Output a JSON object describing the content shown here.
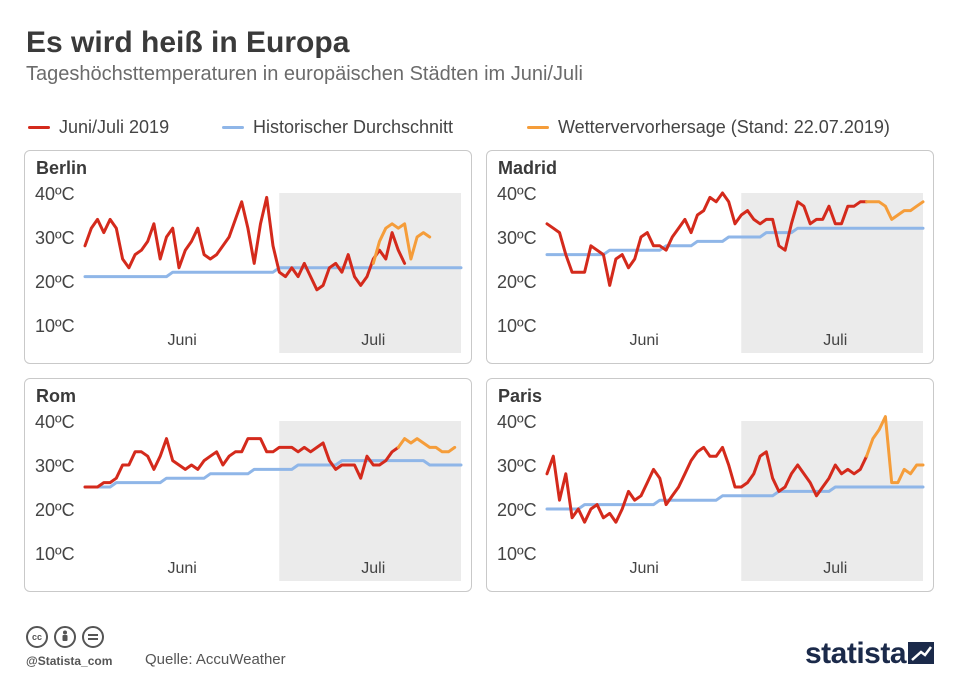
{
  "title": "Es wird heiß in Europa",
  "subtitle": "Tageshöchsttemperaturen in europäischen Städten im Juni/Juli",
  "legend": [
    {
      "label": "Juni/Juli 2019",
      "color": "#d42a1c"
    },
    {
      "label": "Historischer Durchschnitt",
      "color": "#8fb6e8"
    },
    {
      "label": "Wettervervorhersage (Stand: 22.07.2019)",
      "color": "#f59d3a"
    }
  ],
  "colors": {
    "actual": "#d42a1c",
    "average": "#8fb6e8",
    "forecast": "#f59d3a",
    "july_shade": "#ebebeb"
  },
  "footer": {
    "handle": "@Statista_com",
    "source": "Quelle: AccuWeather",
    "brand": "statista",
    "license_icons": [
      "cc",
      "by",
      "nd"
    ]
  },
  "chart_data": [
    {
      "type": "line",
      "title": "Berlin",
      "ylim": [
        10,
        40
      ],
      "yticks": [
        10,
        20,
        30,
        40
      ],
      "ytick_labels": [
        "10ºC",
        "20ºC",
        "30ºC",
        "40ºC"
      ],
      "xlabels": [
        "Juni",
        "Juli"
      ],
      "days": 61,
      "july_start_day": 31,
      "forecast_start_day": 46,
      "series": [
        {
          "name": "Juni/Juli 2019",
          "values": [
            28,
            32,
            34,
            31,
            34,
            32,
            25,
            23,
            26,
            27,
            29,
            33,
            25,
            30,
            32,
            23,
            27,
            29,
            32,
            26,
            25,
            26,
            28,
            30,
            34,
            38,
            32,
            24,
            33,
            39,
            28,
            22,
            21,
            23,
            21,
            24,
            21,
            18,
            19,
            23,
            24,
            22,
            26,
            21,
            19,
            21,
            25,
            27,
            25,
            31,
            27,
            24
          ]
        },
        {
          "name": "Historischer Durchschnitt",
          "values": [
            21,
            21,
            21,
            21,
            21,
            21,
            21,
            21,
            21,
            21,
            21,
            21,
            21,
            21,
            22,
            22,
            22,
            22,
            22,
            22,
            22,
            22,
            22,
            22,
            22,
            22,
            22,
            22,
            22,
            22,
            22,
            23,
            23,
            23,
            23,
            23,
            23,
            23,
            23,
            23,
            23,
            23,
            23,
            23,
            23,
            23,
            23,
            23,
            23,
            23,
            23,
            23,
            23,
            23,
            23,
            23,
            23,
            23,
            23,
            23,
            23
          ]
        },
        {
          "name": "Wettervervorhersage (Stand: 22.07.2019)",
          "values": [
            24,
            29,
            32,
            33,
            32,
            33,
            25,
            30,
            31,
            30
          ]
        }
      ]
    },
    {
      "type": "line",
      "title": "Madrid",
      "ylim": [
        10,
        40
      ],
      "yticks": [
        10,
        20,
        30,
        40
      ],
      "ytick_labels": [
        "10ºC",
        "20ºC",
        "30ºC",
        "40ºC"
      ],
      "xlabels": [
        "Juni",
        "Juli"
      ],
      "days": 61,
      "july_start_day": 31,
      "forecast_start_day": 51,
      "series": [
        {
          "name": "Juni/Juli 2019",
          "values": [
            33,
            32,
            31,
            26,
            22,
            22,
            22,
            28,
            27,
            26,
            19,
            25,
            26,
            23,
            25,
            30,
            31,
            28,
            28,
            27,
            30,
            32,
            34,
            31,
            35,
            36,
            39,
            38,
            40,
            38,
            33,
            35,
            36,
            34,
            33,
            34,
            34,
            28,
            27,
            33,
            38,
            37,
            33,
            34,
            34,
            37,
            33,
            33,
            37,
            37,
            38,
            38
          ]
        },
        {
          "name": "Historischer Durchschnitt",
          "values": [
            26,
            26,
            26,
            26,
            26,
            26,
            26,
            26,
            26,
            26,
            27,
            27,
            27,
            27,
            27,
            27,
            27,
            27,
            27,
            28,
            28,
            28,
            28,
            28,
            29,
            29,
            29,
            29,
            29,
            30,
            30,
            30,
            30,
            30,
            30,
            31,
            31,
            31,
            31,
            31,
            32,
            32,
            32,
            32,
            32,
            32,
            32,
            32,
            32,
            32,
            32,
            32,
            32,
            32,
            32,
            32,
            32,
            32,
            32,
            32,
            32
          ]
        },
        {
          "name": "Wettervervorhersage (Stand: 22.07.2019)",
          "values": [
            38,
            38,
            38,
            37,
            34,
            35,
            36,
            36,
            37,
            38
          ]
        }
      ]
    },
    {
      "type": "line",
      "title": "Rom",
      "ylim": [
        10,
        40
      ],
      "yticks": [
        10,
        20,
        30,
        40
      ],
      "ytick_labels": [
        "10ºC",
        "20ºC",
        "30ºC",
        "40ºC"
      ],
      "xlabels": [
        "Juni",
        "Juli"
      ],
      "days": 61,
      "july_start_day": 31,
      "forecast_start_day": 50,
      "series": [
        {
          "name": "Juni/Juli 2019",
          "values": [
            25,
            25,
            25,
            26,
            26,
            27,
            30,
            30,
            33,
            33,
            32,
            29,
            32,
            36,
            31,
            30,
            29,
            30,
            29,
            31,
            32,
            33,
            30,
            32,
            33,
            33,
            36,
            36,
            36,
            33,
            33,
            34,
            34,
            34,
            33,
            34,
            33,
            34,
            35,
            31,
            29,
            30,
            30,
            30,
            27,
            32,
            30,
            30,
            31,
            33,
            34
          ]
        },
        {
          "name": "Historischer Durchschnitt",
          "values": [
            25,
            25,
            25,
            25,
            25,
            26,
            26,
            26,
            26,
            26,
            26,
            26,
            26,
            27,
            27,
            27,
            27,
            27,
            27,
            27,
            28,
            28,
            28,
            28,
            28,
            28,
            28,
            29,
            29,
            29,
            29,
            29,
            29,
            29,
            30,
            30,
            30,
            30,
            30,
            30,
            30,
            31,
            31,
            31,
            31,
            31,
            31,
            31,
            31,
            31,
            31,
            31,
            31,
            31,
            31,
            30,
            30,
            30,
            30,
            30,
            30
          ]
        },
        {
          "name": "Wettervervorhersage (Stand: 22.07.2019)",
          "values": [
            34,
            36,
            35,
            36,
            35,
            34,
            34,
            33,
            33,
            34
          ]
        }
      ]
    },
    {
      "type": "line",
      "title": "Paris",
      "ylim": [
        10,
        40
      ],
      "yticks": [
        10,
        20,
        30,
        40
      ],
      "ytick_labels": [
        "10ºC",
        "20ºC",
        "30ºC",
        "40ºC"
      ],
      "xlabels": [
        "Juni",
        "Juli"
      ],
      "days": 61,
      "july_start_day": 31,
      "forecast_start_day": 51,
      "series": [
        {
          "name": "Juni/Juli 2019",
          "values": [
            28,
            32,
            22,
            28,
            18,
            20,
            17,
            20,
            21,
            18,
            19,
            17,
            20,
            24,
            22,
            23,
            26,
            29,
            27,
            21,
            23,
            25,
            28,
            31,
            33,
            34,
            32,
            32,
            34,
            30,
            25,
            25,
            26,
            28,
            32,
            33,
            27,
            24,
            25,
            28,
            30,
            28,
            26,
            23,
            25,
            27,
            30,
            28,
            29,
            28,
            29,
            32
          ]
        },
        {
          "name": "Historischer Durchschnitt",
          "values": [
            20,
            20,
            20,
            20,
            20,
            20,
            21,
            21,
            21,
            21,
            21,
            21,
            21,
            21,
            21,
            21,
            21,
            21,
            22,
            22,
            22,
            22,
            22,
            22,
            22,
            22,
            22,
            22,
            23,
            23,
            23,
            23,
            23,
            23,
            23,
            23,
            23,
            24,
            24,
            24,
            24,
            24,
            24,
            24,
            24,
            24,
            25,
            25,
            25,
            25,
            25,
            25,
            25,
            25,
            25,
            25,
            25,
            25,
            25,
            25,
            25
          ]
        },
        {
          "name": "Wettervervorhersage (Stand: 22.07.2019)",
          "values": [
            32,
            36,
            38,
            41,
            26,
            26,
            29,
            28,
            30,
            30
          ]
        }
      ]
    }
  ]
}
